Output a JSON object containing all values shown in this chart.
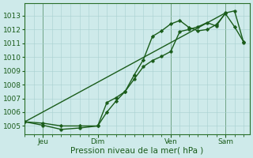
{
  "xlabel": "Pression niveau de la mer( hPa )",
  "background_color": "#ceeaea",
  "grid_color": "#a8d0d0",
  "line_color": "#1a5c1a",
  "ylim": [
    1004.4,
    1013.9
  ],
  "xlim": [
    0,
    74
  ],
  "xticks": [
    6,
    24,
    48,
    66
  ],
  "xtick_labels": [
    "Jeu",
    "Dim",
    "Ven",
    "Sam"
  ],
  "yticks": [
    1005,
    1006,
    1007,
    1008,
    1009,
    1010,
    1011,
    1012,
    1013
  ],
  "series1_x": [
    0,
    6,
    12,
    18,
    24,
    27,
    30,
    33,
    36,
    39,
    42,
    45,
    48,
    51,
    54,
    57,
    60,
    63,
    66,
    69,
    72
  ],
  "series1_y": [
    1005.3,
    1005.05,
    1004.75,
    1004.85,
    1005.0,
    1006.7,
    1007.05,
    1007.5,
    1008.4,
    1009.3,
    1009.75,
    1010.05,
    1010.4,
    1011.85,
    1012.0,
    1012.2,
    1012.5,
    1012.25,
    1013.2,
    1013.35,
    1011.05
  ],
  "series2_x": [
    0,
    6,
    12,
    18,
    24,
    27,
    30,
    33,
    36,
    39,
    42,
    45,
    48,
    51,
    54,
    57,
    60,
    63,
    66,
    69,
    72
  ],
  "series2_y": [
    1005.3,
    1005.2,
    1005.0,
    1005.0,
    1005.0,
    1006.0,
    1006.8,
    1007.5,
    1008.7,
    1009.8,
    1011.5,
    1011.9,
    1012.4,
    1012.65,
    1012.15,
    1011.9,
    1012.0,
    1012.35,
    1013.15,
    1012.2,
    1011.1
  ],
  "series3_x": [
    0,
    66
  ],
  "series3_y": [
    1005.3,
    1013.2
  ],
  "vline_positions": [
    6,
    48,
    66
  ],
  "marker_size": 2.5,
  "linewidth": 1.0
}
